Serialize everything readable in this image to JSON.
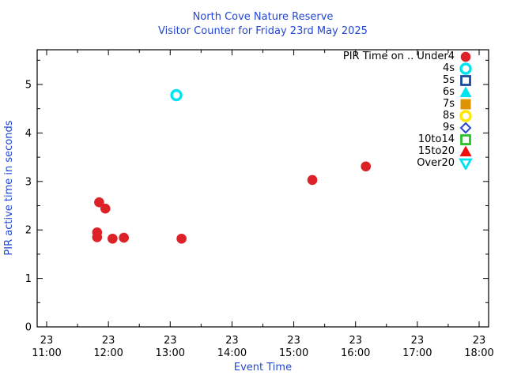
{
  "chart_data": {
    "type": "scatter",
    "title": "North Cove Nature Reserve",
    "subtitle": "Visitor Counter for Friday 23rd May 2025",
    "xlabel": "Event Time",
    "ylabel": "PIR active time in seconds",
    "x_axis": {
      "date_label": "23",
      "tick_times": [
        "11:00",
        "12:00",
        "13:00",
        "14:00",
        "15:00",
        "16:00",
        "17:00",
        "18:00"
      ],
      "minor_step_minutes": 30,
      "range_hours": [
        10.85,
        18.15
      ]
    },
    "y_axis": {
      "ticks": [
        0,
        1,
        2,
        3,
        4,
        5
      ],
      "minor_step": 0.5,
      "range": [
        0,
        5.72
      ]
    },
    "grid": false,
    "legend": {
      "position": "top-right",
      "items": [
        {
          "label": "PIR Time on .. Under4",
          "marker": "circle",
          "fill": "solid",
          "color": "#dc2127"
        },
        {
          "label": "4s",
          "marker": "circle",
          "fill": "open",
          "color": "#00e4f2"
        },
        {
          "label": "5s",
          "marker": "square",
          "fill": "open",
          "color": "#1a4a9e"
        },
        {
          "label": "6s",
          "marker": "triangle-up",
          "fill": "solid",
          "color": "#00e4f2"
        },
        {
          "label": "7s",
          "marker": "square",
          "fill": "solid",
          "color": "#de9400"
        },
        {
          "label": "8s",
          "marker": "circle",
          "fill": "open",
          "color": "#ffe800"
        },
        {
          "label": "9s",
          "marker": "diamond",
          "fill": "open",
          "color": "#2446d2"
        },
        {
          "label": "10to14",
          "marker": "square",
          "fill": "open",
          "color": "#27c427"
        },
        {
          "label": "15to20",
          "marker": "triangle-up",
          "fill": "solid",
          "color": "#f20d0d"
        },
        {
          "label": "Over20",
          "marker": "triangle-down",
          "fill": "open",
          "color": "#00e4f2"
        }
      ]
    },
    "series": [
      {
        "name": "Under4",
        "marker": "circle",
        "fill": "solid",
        "color": "#dc2127",
        "points": [
          [
            "11:51",
            2.57
          ],
          [
            "11:57",
            2.44
          ],
          [
            "11:49",
            1.95
          ],
          [
            "11:49",
            1.85
          ],
          [
            "12:04",
            1.82
          ],
          [
            "12:15",
            1.84
          ],
          [
            "13:11",
            1.82
          ],
          [
            "15:18",
            3.03
          ],
          [
            "16:10",
            3.31
          ]
        ]
      },
      {
        "name": "4s",
        "marker": "circle",
        "fill": "open",
        "color": "#00e4f2",
        "points": [
          [
            "13:06",
            4.78
          ]
        ]
      }
    ],
    "colors": {
      "axis_text": "#000000",
      "blue_text": "#2347d3",
      "frame": "#000000"
    }
  }
}
